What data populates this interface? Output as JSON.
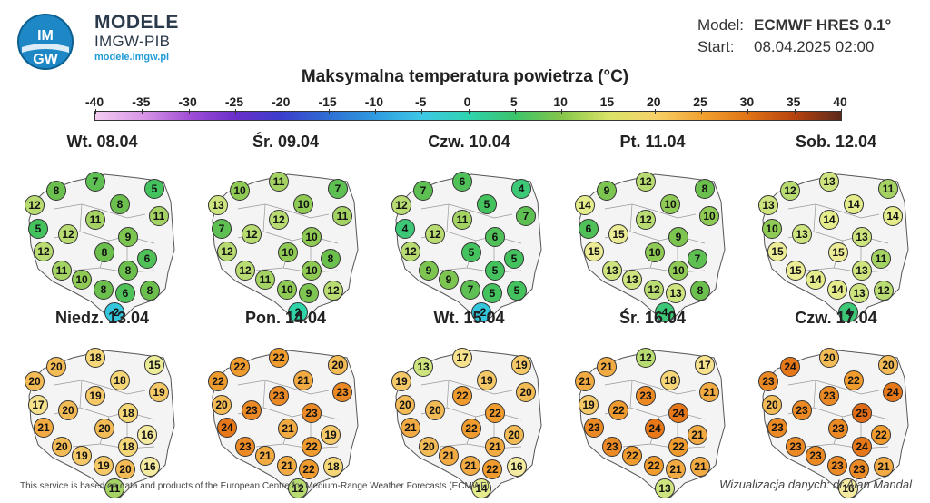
{
  "header": {
    "logo_text_top": "IM",
    "logo_text_bottom": "GW",
    "brand_title": "MODELE",
    "brand_subtitle": "IMGW-PIB",
    "brand_url": "modele.imgw.pl",
    "model_label": "Model:",
    "model_value": "ECMWF HRES 0.1°",
    "start_label": "Start:",
    "start_value": "08.04.2025 02:00"
  },
  "title": "Maksymalna temperatura powietrza (°C)",
  "scale": {
    "labels": [
      "-40",
      "-35",
      "-30",
      "-25",
      "-20",
      "-15",
      "-10",
      "-5",
      "0",
      "5",
      "10",
      "15",
      "20",
      "25",
      "30",
      "35",
      "40"
    ],
    "colors": [
      "#f2ccf2",
      "#d998e6",
      "#a24fd6",
      "#6a2ec9",
      "#3b3fcc",
      "#2f6fd4",
      "#2f9be0",
      "#3ec8e6",
      "#2ed3b0",
      "#3cc46a",
      "#84c64a",
      "#d9e468",
      "#f7d26a",
      "#f0a230",
      "#e07416",
      "#b6420e",
      "#5c2a1c"
    ]
  },
  "panels": [
    {
      "day": "Wt. 08.04",
      "values": [
        8,
        7,
        5,
        12,
        8,
        11,
        5,
        12,
        11,
        9,
        12,
        8,
        6,
        11,
        8,
        10,
        8,
        6,
        8,
        -2
      ]
    },
    {
      "day": "Śr. 09.04",
      "values": [
        10,
        11,
        7,
        13,
        10,
        11,
        7,
        12,
        12,
        10,
        12,
        10,
        8,
        12,
        10,
        11,
        10,
        9,
        12,
        2
      ]
    },
    {
      "day": "Czw. 10.04",
      "values": [
        7,
        6,
        4,
        12,
        5,
        7,
        4,
        12,
        11,
        6,
        12,
        5,
        5,
        9,
        5,
        9,
        7,
        5,
        5,
        -2
      ]
    },
    {
      "day": "Pt. 11.04",
      "values": [
        9,
        12,
        8,
        14,
        10,
        10,
        6,
        15,
        12,
        9,
        15,
        10,
        7,
        13,
        10,
        13,
        12,
        13,
        8,
        4
      ]
    },
    {
      "day": "Sob. 12.04",
      "values": [
        12,
        13,
        11,
        13,
        14,
        14,
        10,
        13,
        14,
        13,
        15,
        15,
        11,
        15,
        13,
        14,
        14,
        13,
        12,
        4
      ]
    },
    {
      "day": "Niedz. 13.04",
      "values": [
        20,
        18,
        15,
        20,
        18,
        19,
        17,
        20,
        19,
        18,
        21,
        20,
        16,
        20,
        18,
        19,
        19,
        20,
        16,
        11
      ]
    },
    {
      "day": "Pon. 14.04",
      "values": [
        22,
        22,
        20,
        22,
        21,
        23,
        20,
        23,
        23,
        23,
        24,
        21,
        19,
        23,
        22,
        21,
        21,
        22,
        18,
        12
      ]
    },
    {
      "day": "Wt. 15.04",
      "values": [
        13,
        17,
        19,
        19,
        19,
        20,
        20,
        20,
        22,
        22,
        21,
        22,
        20,
        20,
        21,
        21,
        21,
        22,
        16,
        14
      ]
    },
    {
      "day": "Śr. 16.04",
      "values": [
        21,
        12,
        17,
        21,
        18,
        21,
        19,
        22,
        23,
        24,
        23,
        24,
        21,
        23,
        22,
        22,
        22,
        21,
        21,
        13
      ]
    },
    {
      "day": "Czw. 17.04",
      "values": [
        24,
        20,
        20,
        23,
        22,
        24,
        20,
        23,
        23,
        25,
        23,
        23,
        22,
        23,
        24,
        23,
        23,
        23,
        21,
        16
      ]
    }
  ],
  "footer": {
    "left": "This service is based on data and products of the European Centre for Medium-Range Weather Forecasts (ECMWF)",
    "right": "Wizualizacja danych: dr Alan Mandal"
  }
}
